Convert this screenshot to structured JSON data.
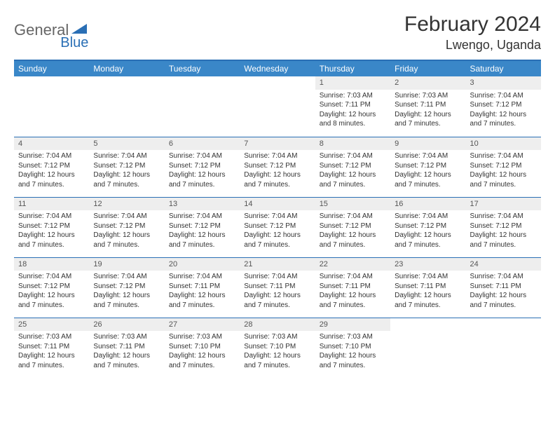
{
  "logo": {
    "part1": "General",
    "part2": "Blue"
  },
  "title": "February 2024",
  "location": "Lwengo, Uganda",
  "colors": {
    "header_bg": "#3a87c8",
    "header_border": "#2a6fb5",
    "daynum_bg": "#eeeeee",
    "text": "#333333",
    "cell_border": "#2a6fb5"
  },
  "day_headers": [
    "Sunday",
    "Monday",
    "Tuesday",
    "Wednesday",
    "Thursday",
    "Friday",
    "Saturday"
  ],
  "weeks": [
    [
      {
        "n": "",
        "lines": []
      },
      {
        "n": "",
        "lines": []
      },
      {
        "n": "",
        "lines": []
      },
      {
        "n": "",
        "lines": []
      },
      {
        "n": "1",
        "lines": [
          "Sunrise: 7:03 AM",
          "Sunset: 7:11 PM",
          "Daylight: 12 hours and 8 minutes."
        ]
      },
      {
        "n": "2",
        "lines": [
          "Sunrise: 7:03 AM",
          "Sunset: 7:11 PM",
          "Daylight: 12 hours and 7 minutes."
        ]
      },
      {
        "n": "3",
        "lines": [
          "Sunrise: 7:04 AM",
          "Sunset: 7:12 PM",
          "Daylight: 12 hours and 7 minutes."
        ]
      }
    ],
    [
      {
        "n": "4",
        "lines": [
          "Sunrise: 7:04 AM",
          "Sunset: 7:12 PM",
          "Daylight: 12 hours and 7 minutes."
        ]
      },
      {
        "n": "5",
        "lines": [
          "Sunrise: 7:04 AM",
          "Sunset: 7:12 PM",
          "Daylight: 12 hours and 7 minutes."
        ]
      },
      {
        "n": "6",
        "lines": [
          "Sunrise: 7:04 AM",
          "Sunset: 7:12 PM",
          "Daylight: 12 hours and 7 minutes."
        ]
      },
      {
        "n": "7",
        "lines": [
          "Sunrise: 7:04 AM",
          "Sunset: 7:12 PM",
          "Daylight: 12 hours and 7 minutes."
        ]
      },
      {
        "n": "8",
        "lines": [
          "Sunrise: 7:04 AM",
          "Sunset: 7:12 PM",
          "Daylight: 12 hours and 7 minutes."
        ]
      },
      {
        "n": "9",
        "lines": [
          "Sunrise: 7:04 AM",
          "Sunset: 7:12 PM",
          "Daylight: 12 hours and 7 minutes."
        ]
      },
      {
        "n": "10",
        "lines": [
          "Sunrise: 7:04 AM",
          "Sunset: 7:12 PM",
          "Daylight: 12 hours and 7 minutes."
        ]
      }
    ],
    [
      {
        "n": "11",
        "lines": [
          "Sunrise: 7:04 AM",
          "Sunset: 7:12 PM",
          "Daylight: 12 hours and 7 minutes."
        ]
      },
      {
        "n": "12",
        "lines": [
          "Sunrise: 7:04 AM",
          "Sunset: 7:12 PM",
          "Daylight: 12 hours and 7 minutes."
        ]
      },
      {
        "n": "13",
        "lines": [
          "Sunrise: 7:04 AM",
          "Sunset: 7:12 PM",
          "Daylight: 12 hours and 7 minutes."
        ]
      },
      {
        "n": "14",
        "lines": [
          "Sunrise: 7:04 AM",
          "Sunset: 7:12 PM",
          "Daylight: 12 hours and 7 minutes."
        ]
      },
      {
        "n": "15",
        "lines": [
          "Sunrise: 7:04 AM",
          "Sunset: 7:12 PM",
          "Daylight: 12 hours and 7 minutes."
        ]
      },
      {
        "n": "16",
        "lines": [
          "Sunrise: 7:04 AM",
          "Sunset: 7:12 PM",
          "Daylight: 12 hours and 7 minutes."
        ]
      },
      {
        "n": "17",
        "lines": [
          "Sunrise: 7:04 AM",
          "Sunset: 7:12 PM",
          "Daylight: 12 hours and 7 minutes."
        ]
      }
    ],
    [
      {
        "n": "18",
        "lines": [
          "Sunrise: 7:04 AM",
          "Sunset: 7:12 PM",
          "Daylight: 12 hours and 7 minutes."
        ]
      },
      {
        "n": "19",
        "lines": [
          "Sunrise: 7:04 AM",
          "Sunset: 7:12 PM",
          "Daylight: 12 hours and 7 minutes."
        ]
      },
      {
        "n": "20",
        "lines": [
          "Sunrise: 7:04 AM",
          "Sunset: 7:11 PM",
          "Daylight: 12 hours and 7 minutes."
        ]
      },
      {
        "n": "21",
        "lines": [
          "Sunrise: 7:04 AM",
          "Sunset: 7:11 PM",
          "Daylight: 12 hours and 7 minutes."
        ]
      },
      {
        "n": "22",
        "lines": [
          "Sunrise: 7:04 AM",
          "Sunset: 7:11 PM",
          "Daylight: 12 hours and 7 minutes."
        ]
      },
      {
        "n": "23",
        "lines": [
          "Sunrise: 7:04 AM",
          "Sunset: 7:11 PM",
          "Daylight: 12 hours and 7 minutes."
        ]
      },
      {
        "n": "24",
        "lines": [
          "Sunrise: 7:04 AM",
          "Sunset: 7:11 PM",
          "Daylight: 12 hours and 7 minutes."
        ]
      }
    ],
    [
      {
        "n": "25",
        "lines": [
          "Sunrise: 7:03 AM",
          "Sunset: 7:11 PM",
          "Daylight: 12 hours and 7 minutes."
        ]
      },
      {
        "n": "26",
        "lines": [
          "Sunrise: 7:03 AM",
          "Sunset: 7:11 PM",
          "Daylight: 12 hours and 7 minutes."
        ]
      },
      {
        "n": "27",
        "lines": [
          "Sunrise: 7:03 AM",
          "Sunset: 7:10 PM",
          "Daylight: 12 hours and 7 minutes."
        ]
      },
      {
        "n": "28",
        "lines": [
          "Sunrise: 7:03 AM",
          "Sunset: 7:10 PM",
          "Daylight: 12 hours and 7 minutes."
        ]
      },
      {
        "n": "29",
        "lines": [
          "Sunrise: 7:03 AM",
          "Sunset: 7:10 PM",
          "Daylight: 12 hours and 7 minutes."
        ]
      },
      {
        "n": "",
        "lines": []
      },
      {
        "n": "",
        "lines": []
      }
    ]
  ]
}
